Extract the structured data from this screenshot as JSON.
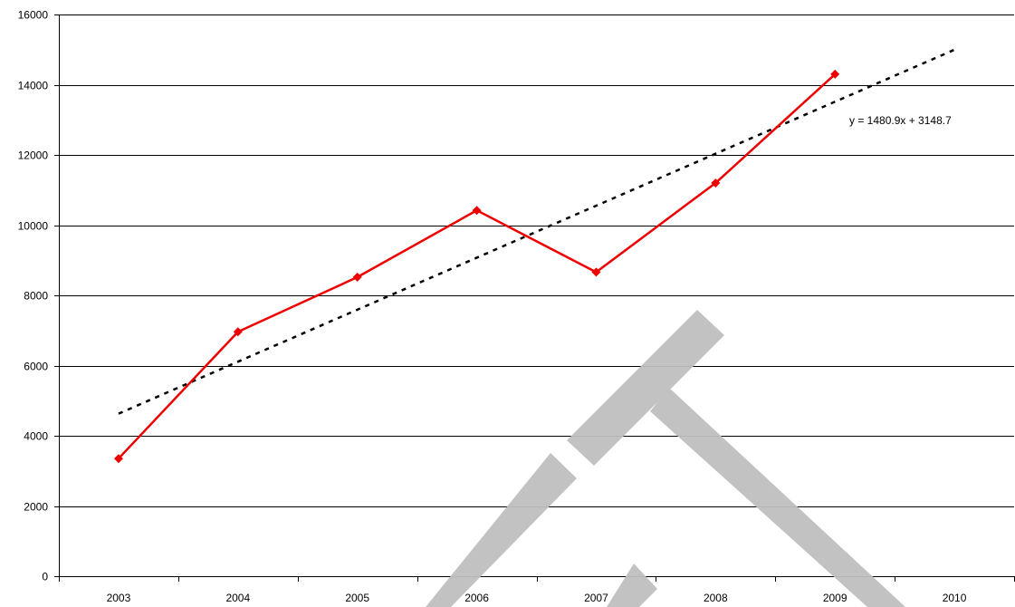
{
  "chart_data": {
    "type": "line",
    "title": "",
    "xlabel": "",
    "ylabel": "",
    "categories": [
      "2003",
      "2004",
      "2005",
      "2006",
      "2007",
      "2008",
      "2009",
      "2010"
    ],
    "ylim": [
      0,
      16000
    ],
    "yticks": [
      0,
      2000,
      4000,
      6000,
      8000,
      10000,
      12000,
      14000,
      16000
    ],
    "grid": true,
    "legend": "none",
    "series": [
      {
        "values": [
          3350,
          6960,
          8520,
          10420,
          8660,
          11200,
          14300,
          null
        ],
        "color": "#ee0000",
        "marker": "diamond"
      }
    ],
    "trendline": {
      "type": "linear",
      "style": "dotted",
      "color": "#000000",
      "slope": 1480.9,
      "intercept": 3148.7,
      "equation_label": "y = 1480.9x + 3148.7"
    },
    "watermark": {
      "shape": "diagonal-letter-mark",
      "color": "#bfbfbf"
    }
  }
}
